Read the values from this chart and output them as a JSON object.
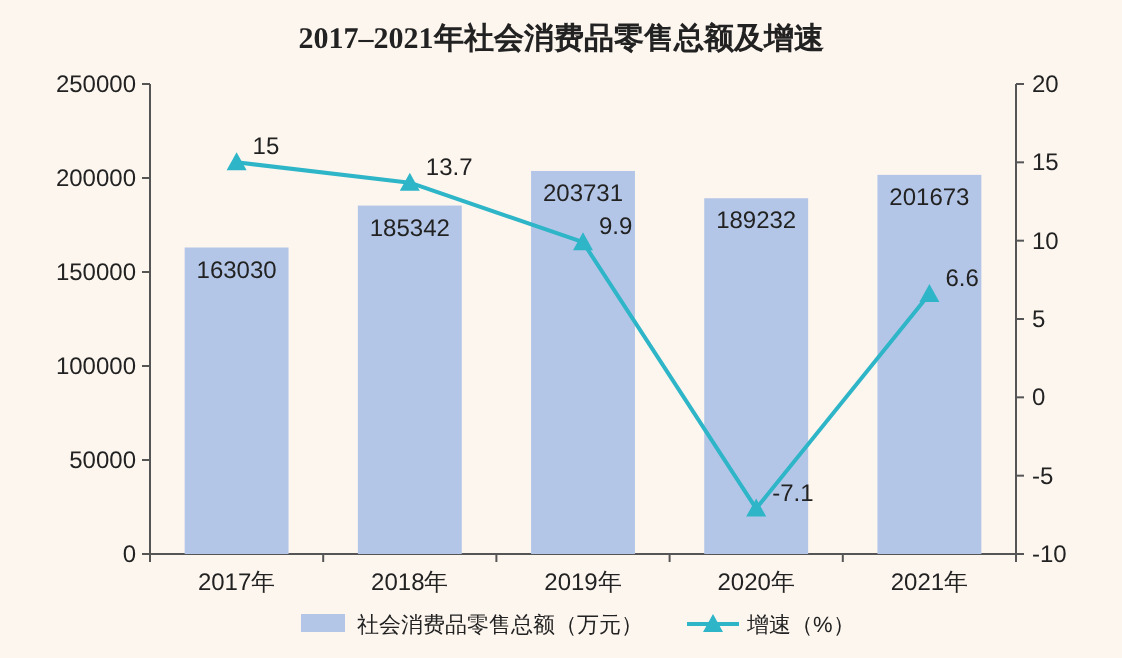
{
  "chart_data": {
    "type": "bar",
    "title": "2017–2021年社会消费品零售总额及增速",
    "categories": [
      "2017年",
      "2018年",
      "2019年",
      "2020年",
      "2021年"
    ],
    "series": [
      {
        "name": "社会消费品零售总额（万元）",
        "color": "#b4c6e7",
        "values": [
          163030,
          185342,
          203731,
          189232,
          201673
        ]
      },
      {
        "name": "增速（%）",
        "type": "line",
        "axis": "y2",
        "marker": "triangle",
        "color": "#2eb5c8",
        "values": [
          15,
          13.7,
          9.9,
          -7.1,
          6.6
        ]
      }
    ],
    "ylim": [
      0,
      250000
    ],
    "yticks": [
      0,
      50000,
      100000,
      150000,
      200000,
      250000
    ],
    "y2lim": [
      -10,
      20
    ],
    "y2ticks": [
      -10,
      -5,
      0,
      5,
      10,
      15,
      20
    ],
    "legend": "bottom",
    "data_labels": true
  }
}
